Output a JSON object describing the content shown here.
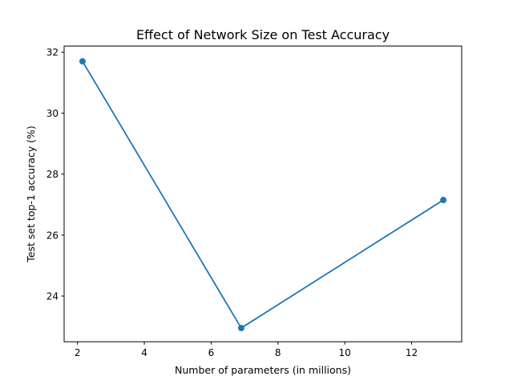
{
  "chart_data": {
    "type": "line",
    "title": "Effect of Network Size on Test Accuracy",
    "xlabel": "Number of parameters (in millions)",
    "ylabel": "Test set top-1 accuracy (%)",
    "xlim": [
      1.6,
      13.5
    ],
    "ylim": [
      22.5,
      32.2
    ],
    "xticks": [
      2,
      4,
      6,
      8,
      10,
      12
    ],
    "yticks": [
      24,
      26,
      28,
      30,
      32
    ],
    "grid": false,
    "series": [
      {
        "x": [
          2.15,
          6.9,
          12.95
        ],
        "y": [
          31.7,
          22.95,
          27.15
        ],
        "color": "#1f77b4",
        "marker": "circle"
      }
    ]
  }
}
